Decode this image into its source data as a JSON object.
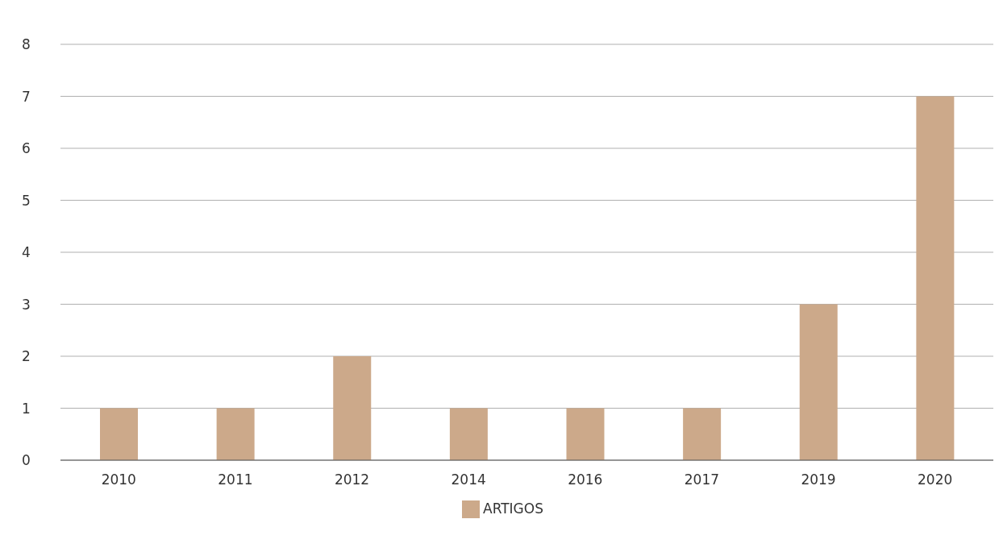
{
  "chart_data": {
    "type": "bar",
    "categories": [
      "2010",
      "2011",
      "2012",
      "2014",
      "2016",
      "2017",
      "2019",
      "2020"
    ],
    "series": [
      {
        "name": "ARTIGOS",
        "color": "#cca98a",
        "values": [
          1,
          1,
          2,
          1,
          1,
          1,
          3,
          7
        ]
      }
    ],
    "ylim": [
      0,
      8
    ],
    "yticks": [
      0,
      1,
      2,
      3,
      4,
      5,
      6,
      7,
      8
    ],
    "grid": "y",
    "legend": "bottom"
  }
}
